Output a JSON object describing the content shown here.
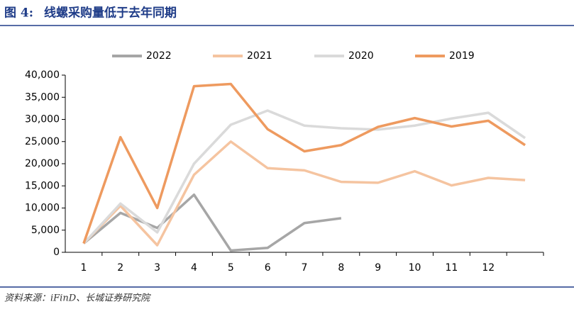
{
  "header": {
    "figure_label": "图 4:",
    "title": "线螺采购量低于去年同期"
  },
  "chart_data": {
    "type": "line",
    "categories": [
      "1",
      "2",
      "3",
      "4",
      "5",
      "6",
      "7",
      "8",
      "9",
      "10",
      "11",
      "12",
      null
    ],
    "series": [
      {
        "name": "2022",
        "color": "#a6a6a6",
        "values": [
          2000,
          8900,
          5500,
          13000,
          400,
          1000,
          6600,
          7700,
          null,
          null,
          null,
          null,
          null
        ]
      },
      {
        "name": "2021",
        "color": "#f5c4a0",
        "values": [
          2000,
          10500,
          1600,
          17500,
          25000,
          19000,
          18500,
          15900,
          15700,
          18300,
          15100,
          16800,
          16300
        ]
      },
      {
        "name": "2020",
        "color": "#dadada",
        "values": [
          2000,
          11000,
          4500,
          20000,
          28800,
          32000,
          28600,
          28000,
          27700,
          28600,
          30200,
          31500,
          25800
        ]
      },
      {
        "name": "2019",
        "color": "#ee9a5f",
        "values": [
          2000,
          26000,
          10000,
          37500,
          38000,
          27800,
          22800,
          24200,
          28300,
          30300,
          28400,
          29700,
          24200
        ]
      }
    ],
    "ylim": [
      0,
      40000
    ],
    "yticks": [
      0,
      {
        "value": 5000,
        "label": "5,000"
      },
      {
        "value": 10000,
        "label": "10,000"
      },
      {
        "value": 15000,
        "label": "15,000"
      },
      {
        "value": 20000,
        "label": "20,000"
      },
      {
        "value": 25000,
        "label": "25,000"
      },
      {
        "value": 30000,
        "label": "30,000"
      },
      {
        "value": 35000,
        "label": "35,000"
      },
      {
        "value": 40000,
        "label": "40,000"
      }
    ],
    "grid": false,
    "legend": "top"
  },
  "footer": {
    "source": "资料来源：iFinD、长城证券研究院"
  }
}
